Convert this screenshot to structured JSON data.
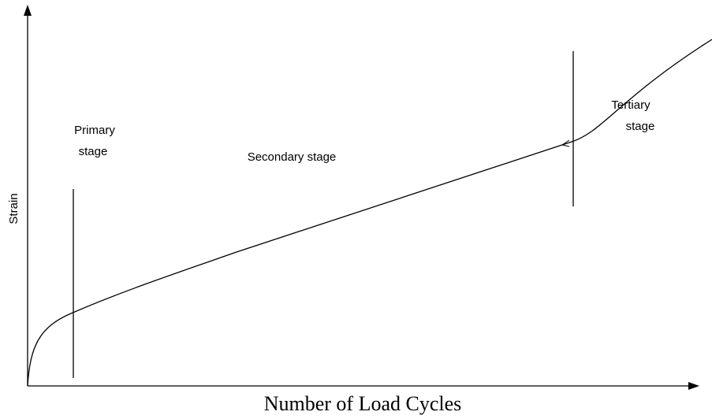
{
  "axes": {
    "x_label": "Number of Load Cycles",
    "y_label": "Strain"
  },
  "stages": [
    {
      "lines": [
        "Primary",
        "stage"
      ]
    },
    {
      "lines": [
        "Secondary stage"
      ]
    },
    {
      "lines": [
        "Tertiary",
        "stage"
      ]
    }
  ]
}
